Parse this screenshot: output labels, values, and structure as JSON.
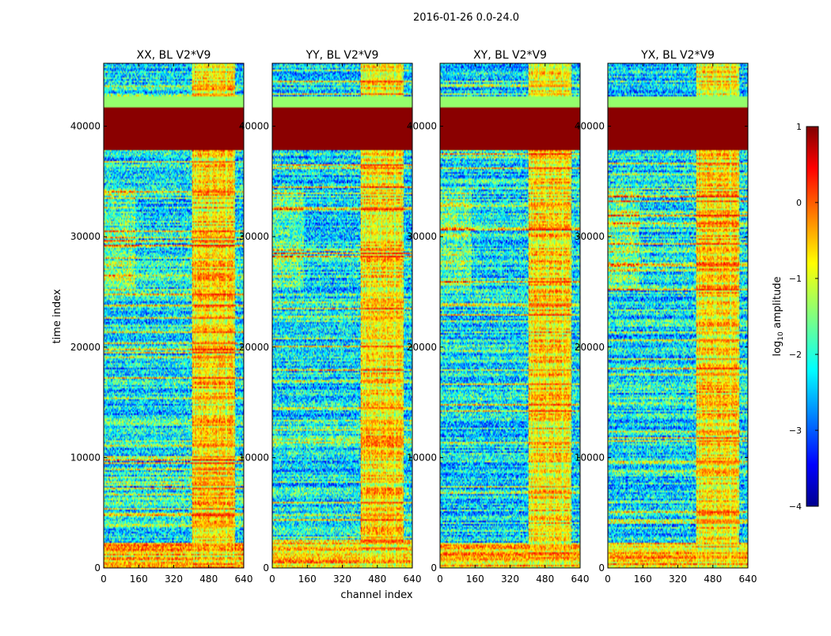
{
  "figure": {
    "suptitle": "2016-01-26 0.0-24.0",
    "xlabel": "channel index",
    "ylabel": "time index"
  },
  "colorbar": {
    "label": "log",
    "label_sub": "10",
    "label_rest": " amplitude",
    "range": [
      -4,
      1
    ],
    "ticks": [
      1,
      0,
      -1,
      -2,
      -3,
      -4
    ],
    "tick_labels": [
      "1",
      "0",
      "−1",
      "−2",
      "−3",
      "−4"
    ],
    "colormap": "jet"
  },
  "chart_data": [
    {
      "type": "heatmap",
      "title": "XX, BL V2*V9",
      "xlim": [
        0,
        640
      ],
      "ylim": [
        0,
        45700
      ],
      "xticks": [
        0,
        160,
        320,
        480,
        640
      ],
      "yticks": [
        0,
        10000,
        20000,
        30000,
        40000
      ],
      "xtick_labels": [
        "0",
        "160",
        "320",
        "480",
        "640"
      ],
      "ytick_labels": [
        "0",
        "10000",
        "20000",
        "30000",
        "40000"
      ],
      "xlabel": "",
      "ylabel": "time index",
      "seed": 11,
      "variant": 0
    },
    {
      "type": "heatmap",
      "title": "YY, BL V2*V9",
      "xlim": [
        0,
        640
      ],
      "ylim": [
        0,
        45700
      ],
      "xticks": [
        0,
        160,
        320,
        480,
        640
      ],
      "yticks": [
        0,
        10000,
        20000,
        30000,
        40000
      ],
      "xtick_labels": [
        "0",
        "160",
        "320",
        "480",
        "640"
      ],
      "ytick_labels": [
        "0",
        "10000",
        "20000",
        "30000",
        "40000"
      ],
      "xlabel": "channel index",
      "ylabel": "",
      "seed": 23,
      "variant": 1
    },
    {
      "type": "heatmap",
      "title": "XY, BL V2*V9",
      "xlim": [
        0,
        640
      ],
      "ylim": [
        0,
        45700
      ],
      "xticks": [
        0,
        160,
        320,
        480,
        640
      ],
      "yticks": [
        0,
        10000,
        20000,
        30000,
        40000
      ],
      "xtick_labels": [
        "0",
        "160",
        "320",
        "480",
        "640"
      ],
      "ytick_labels": [
        "0",
        "10000",
        "20000",
        "30000",
        "40000"
      ],
      "xlabel": "",
      "ylabel": "",
      "seed": 37,
      "variant": 2
    },
    {
      "type": "heatmap",
      "title": "YX, BL V2*V9",
      "xlim": [
        0,
        640
      ],
      "ylim": [
        0,
        45700
      ],
      "xticks": [
        0,
        160,
        320,
        480,
        640
      ],
      "yticks": [
        0,
        10000,
        20000,
        30000,
        40000
      ],
      "xtick_labels": [
        "0",
        "160",
        "320",
        "480",
        "640"
      ],
      "ytick_labels": [
        "0",
        "10000",
        "20000",
        "30000",
        "40000"
      ],
      "xlabel": "",
      "ylabel": "",
      "seed": 53,
      "variant": 3
    }
  ]
}
